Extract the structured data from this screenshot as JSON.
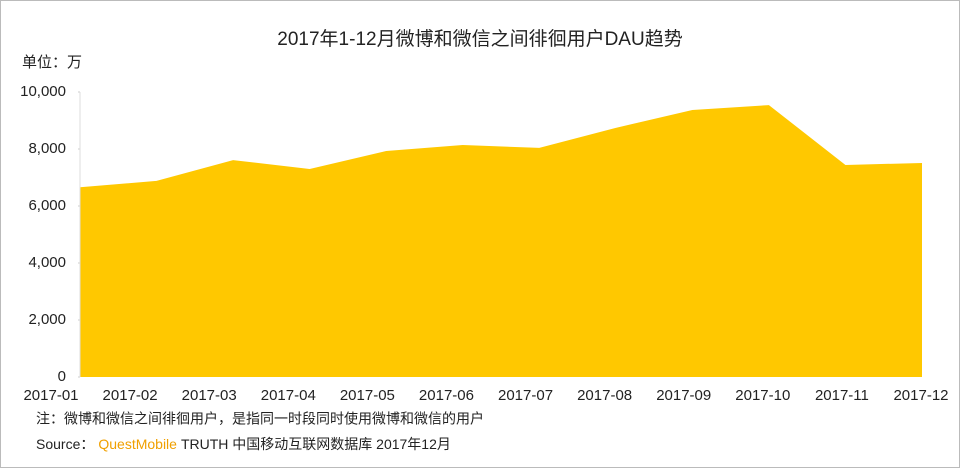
{
  "chart_data": {
    "type": "area",
    "title": "2017年1-12月微博和微信之间徘徊用户DAU趋势",
    "y_unit_label": "单位：万",
    "categories": [
      "2017-01",
      "2017-02",
      "2017-03",
      "2017-04",
      "2017-05",
      "2017-06",
      "2017-07",
      "2017-08",
      "2017-09",
      "2017-10",
      "2017-11",
      "2017-12"
    ],
    "values": [
      6660,
      6880,
      7610,
      7300,
      7930,
      8140,
      8040,
      8740,
      9370,
      9540,
      7440,
      7510
    ],
    "color": "#ffc800",
    "ylim": [
      0,
      10000
    ],
    "yticks": [
      0,
      {
        "value": 2000,
        "label": "2,000"
      },
      {
        "value": 4000,
        "label": "4,000"
      },
      {
        "value": 6000,
        "label": "6,000"
      },
      {
        "value": 8000,
        "label": "8,000"
      },
      {
        "value": 10000,
        "label": "10,000"
      }
    ],
    "note": "注：微博和微信之间徘徊用户，是指同一时段同时使用微博和微信的用户",
    "source_label": "Source：",
    "source_brand": "QuestMobile",
    "source_text": "TRUTH 中国移动互联网数据库 2017年12月"
  }
}
